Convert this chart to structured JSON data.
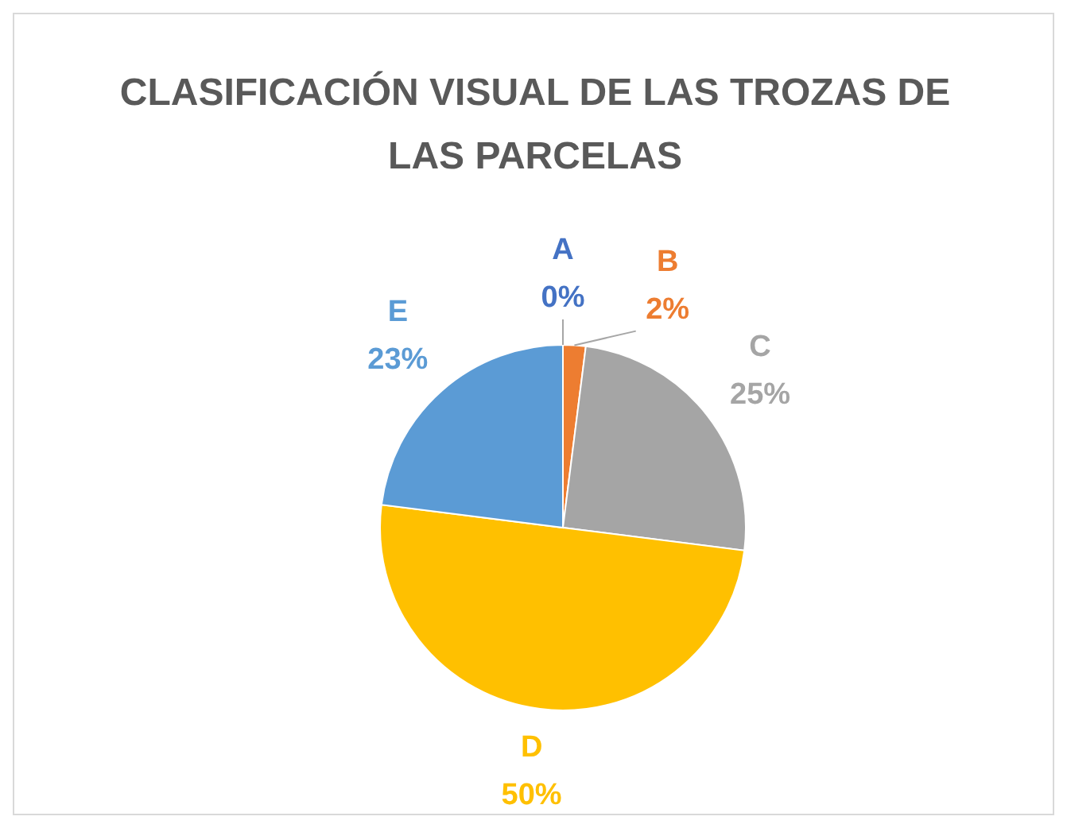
{
  "chart_data": {
    "type": "pie",
    "title": "CLASIFICACIÓN VISUAL DE LAS TROZAS DE LAS PARCELAS",
    "categories": [
      "A",
      "B",
      "C",
      "D",
      "E"
    ],
    "values": [
      0,
      2,
      25,
      50,
      23
    ],
    "colors": [
      "#4472c4",
      "#ed7d31",
      "#a5a5a5",
      "#ffc000",
      "#5b9bd5"
    ],
    "value_labels": [
      "0%",
      "2%",
      "25%",
      "50%",
      "23%"
    ]
  }
}
